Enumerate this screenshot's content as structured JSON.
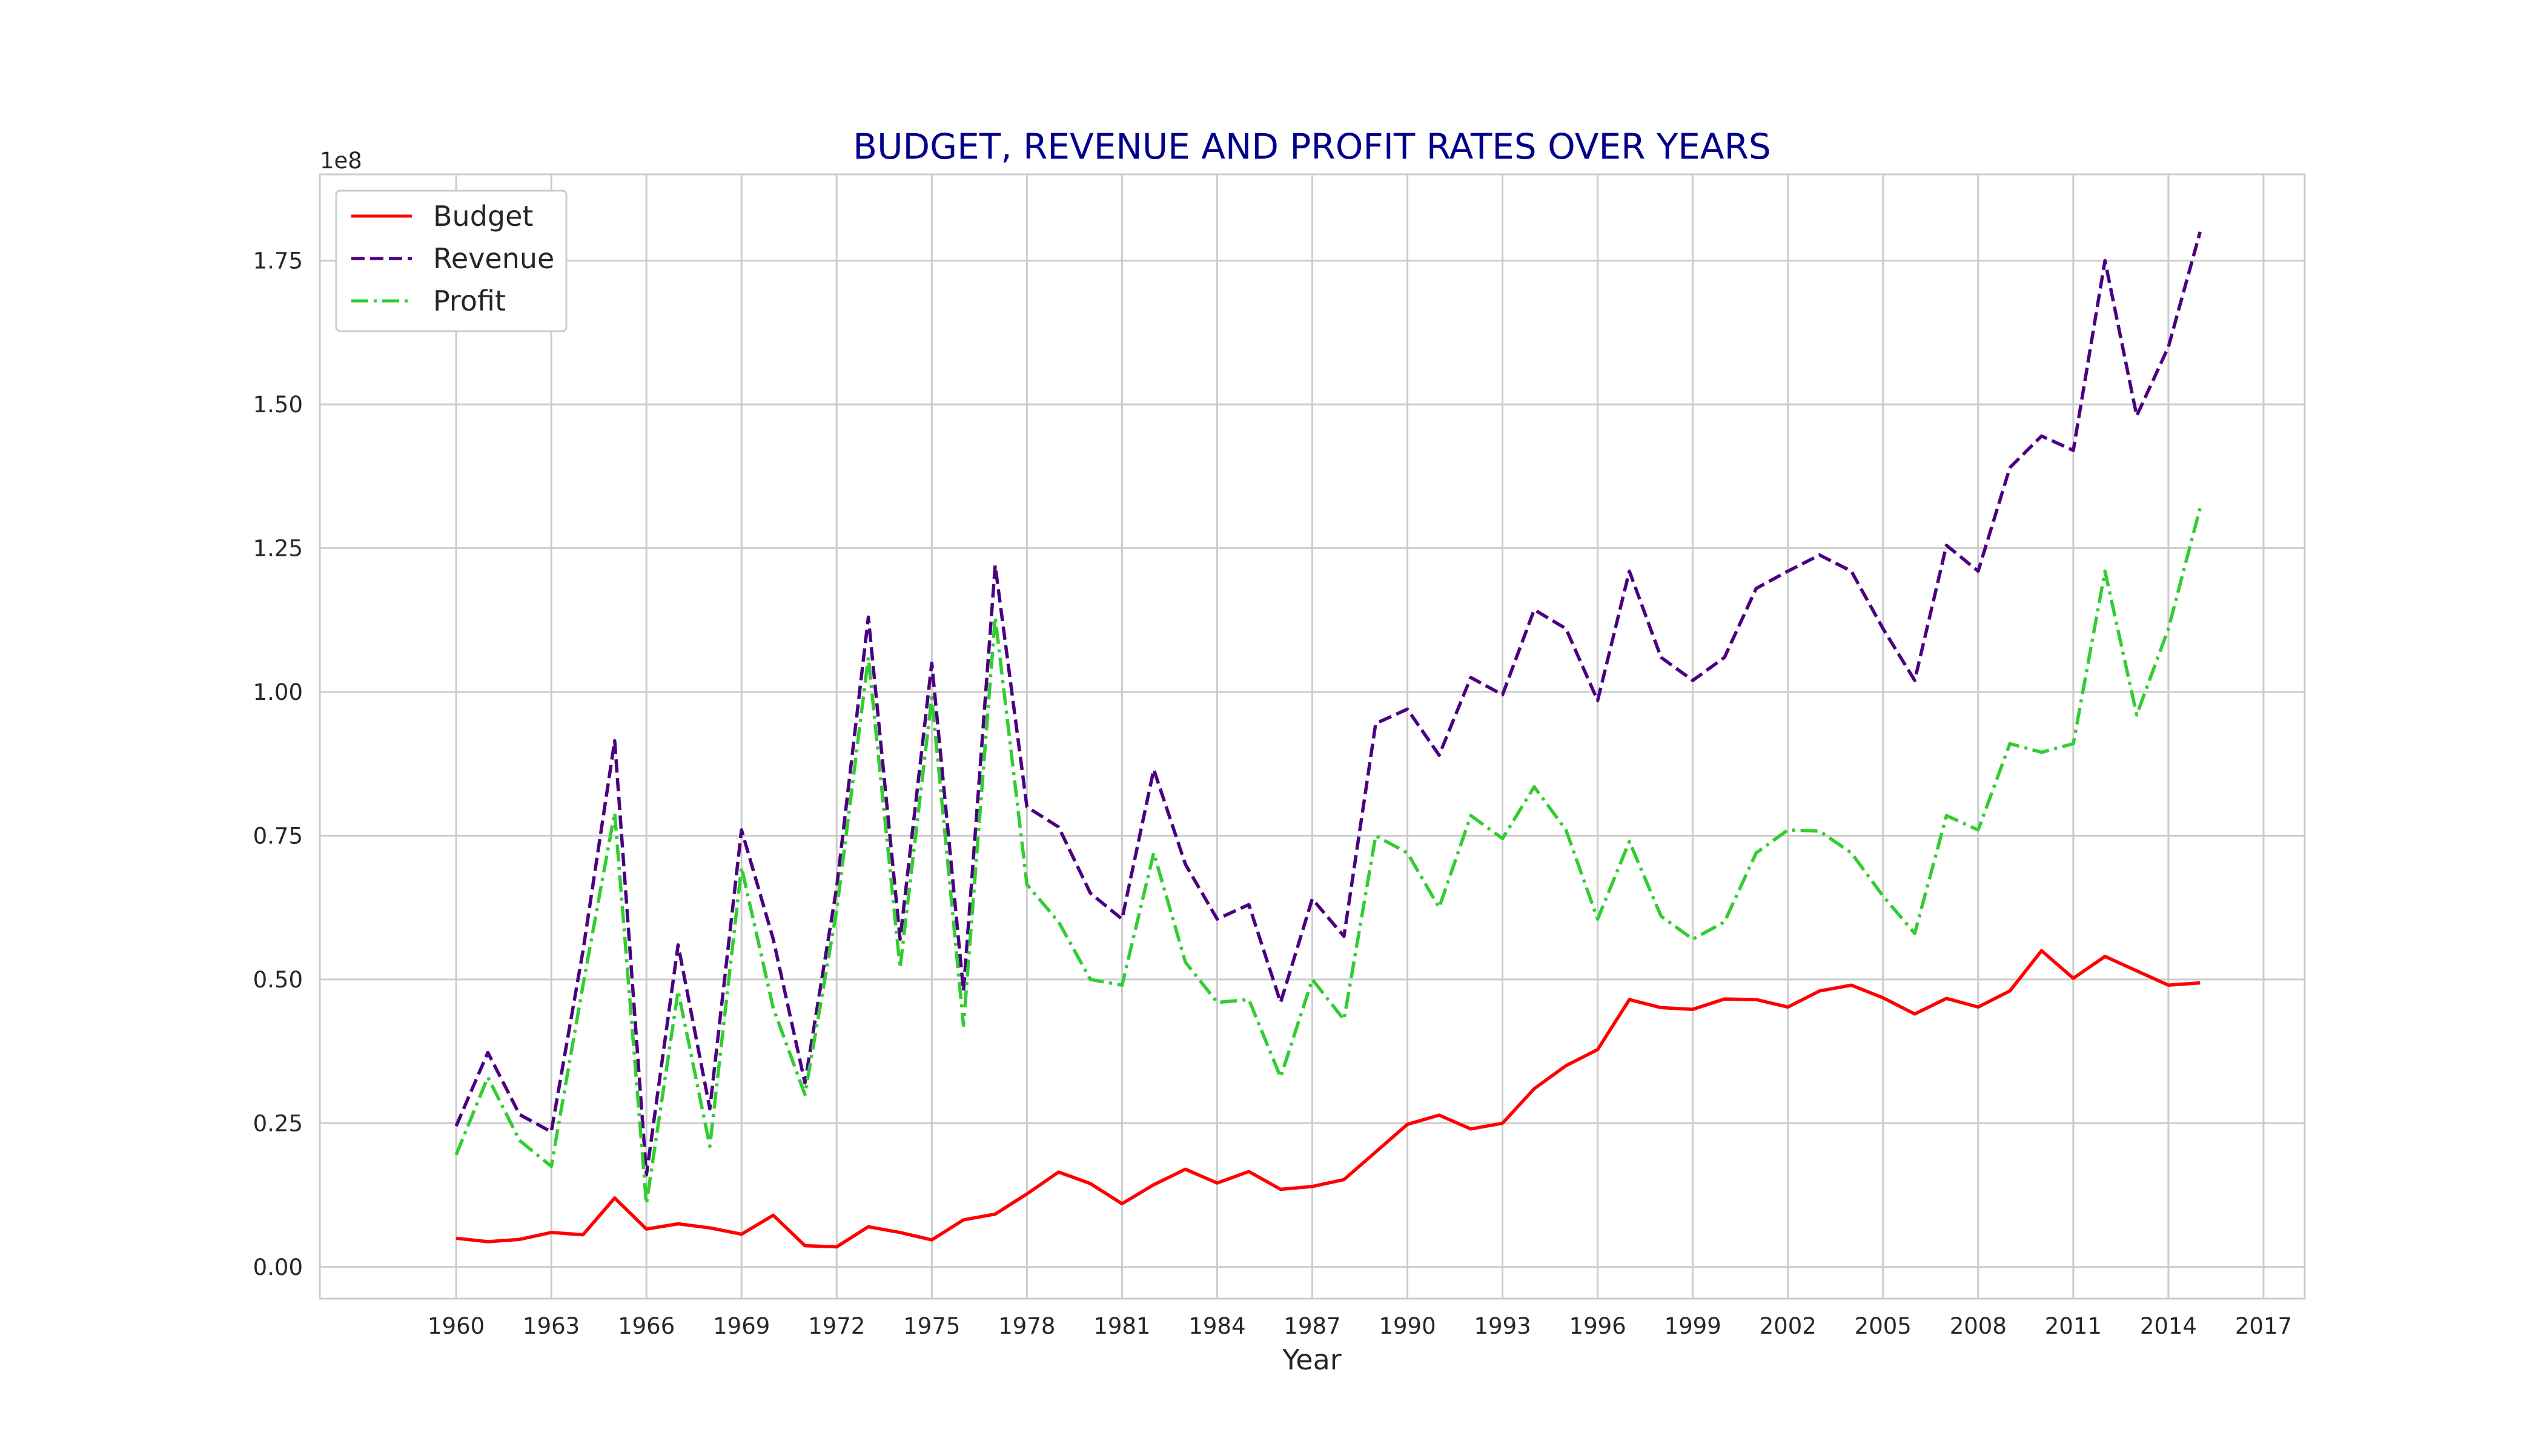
{
  "chart_data": {
    "type": "line",
    "title": "BUDGET, REVENUE AND PROFIT RATES OVER YEARS",
    "xlabel": "Year",
    "ylabel": "",
    "y_offset_label": "1e8",
    "xlim": [
      1955.7,
      2018.3
    ],
    "ylim": [
      -0.055,
      1.9
    ],
    "grid": true,
    "legend_position": "upper-left",
    "x_ticks": [
      "1960",
      "1963",
      "1966",
      "1969",
      "1972",
      "1975",
      "1978",
      "1981",
      "1984",
      "1987",
      "1990",
      "1993",
      "1996",
      "1999",
      "2002",
      "2005",
      "2008",
      "2011",
      "2014",
      "2017"
    ],
    "y_ticks": [
      "0.00",
      "0.25",
      "0.50",
      "0.75",
      "1.00",
      "1.25",
      "1.50",
      "1.75"
    ],
    "colors": {
      "title": "#00008b",
      "budget": "#ff0000",
      "revenue": "#4b0082",
      "profit": "#32cd32",
      "grid": "#cccccc"
    },
    "x": [
      1960,
      1961,
      1962,
      1963,
      1964,
      1965,
      1966,
      1967,
      1968,
      1969,
      1970,
      1971,
      1972,
      1973,
      1974,
      1975,
      1976,
      1977,
      1978,
      1979,
      1980,
      1981,
      1982,
      1983,
      1984,
      1985,
      1986,
      1987,
      1988,
      1989,
      1990,
      1991,
      1992,
      1993,
      1994,
      1995,
      1996,
      1997,
      1998,
      1999,
      2000,
      2001,
      2002,
      2003,
      2004,
      2005,
      2006,
      2007,
      2008,
      2009,
      2010,
      2011,
      2012,
      2013,
      2014,
      2015
    ],
    "series": [
      {
        "name": "Budget",
        "style": "solid",
        "values": [
          0.05,
          0.044,
          0.048,
          0.06,
          0.056,
          0.12,
          0.066,
          0.075,
          0.068,
          0.057,
          0.09,
          0.037,
          0.035,
          0.07,
          0.06,
          0.047,
          0.082,
          0.092,
          0.127,
          0.165,
          0.145,
          0.11,
          0.143,
          0.17,
          0.146,
          0.166,
          0.135,
          0.14,
          0.152,
          0.2,
          0.248,
          0.264,
          0.24,
          0.25,
          0.31,
          0.35,
          0.378,
          0.465,
          0.451,
          0.448,
          0.466,
          0.465,
          0.452,
          0.48,
          0.49,
          0.468,
          0.44,
          0.467,
          0.452,
          0.48,
          0.55,
          0.502,
          0.54,
          0.515,
          0.49,
          0.494
        ]
      },
      {
        "name": "Revenue",
        "style": "dashed",
        "values": [
          0.245,
          0.373,
          0.265,
          0.235,
          0.55,
          0.915,
          0.16,
          0.56,
          0.275,
          0.76,
          0.57,
          0.32,
          0.66,
          1.13,
          0.57,
          1.05,
          0.48,
          1.22,
          0.8,
          0.765,
          0.65,
          0.605,
          0.865,
          0.7,
          0.605,
          0.63,
          0.46,
          0.64,
          0.575,
          0.945,
          0.97,
          0.89,
          1.025,
          0.995,
          1.143,
          1.11,
          0.985,
          1.21,
          1.06,
          1.02,
          1.06,
          1.18,
          1.21,
          1.238,
          1.21,
          1.11,
          1.02,
          1.255,
          1.21,
          1.39,
          1.445,
          1.42,
          1.75,
          1.48,
          1.6,
          1.8
        ]
      },
      {
        "name": "Profit",
        "style": "dashdot",
        "values": [
          0.195,
          0.33,
          0.22,
          0.175,
          0.49,
          0.79,
          0.11,
          0.48,
          0.21,
          0.695,
          0.45,
          0.3,
          0.62,
          1.06,
          0.52,
          0.99,
          0.42,
          1.13,
          0.665,
          0.6,
          0.5,
          0.49,
          0.72,
          0.53,
          0.46,
          0.465,
          0.33,
          0.5,
          0.43,
          0.75,
          0.72,
          0.625,
          0.785,
          0.745,
          0.835,
          0.76,
          0.605,
          0.74,
          0.61,
          0.57,
          0.6,
          0.72,
          0.76,
          0.758,
          0.72,
          0.645,
          0.58,
          0.785,
          0.76,
          0.91,
          0.895,
          0.91,
          1.21,
          0.96,
          1.11,
          1.32
        ]
      }
    ]
  }
}
